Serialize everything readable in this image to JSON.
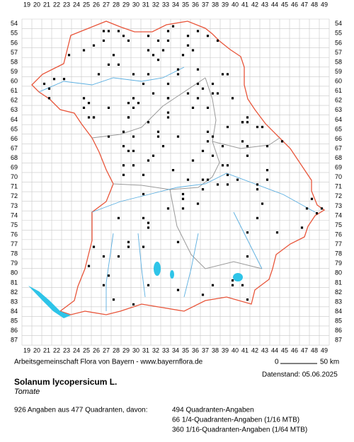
{
  "map": {
    "columns": [
      19,
      20,
      21,
      22,
      23,
      24,
      25,
      26,
      27,
      28,
      29,
      30,
      31,
      32,
      33,
      34,
      35,
      36,
      37,
      38,
      39,
      40,
      41,
      42,
      43,
      44,
      45,
      46,
      47,
      48,
      49
    ],
    "rows": [
      54,
      55,
      56,
      57,
      58,
      59,
      60,
      61,
      62,
      63,
      64,
      65,
      66,
      67,
      68,
      69,
      70,
      71,
      72,
      73,
      74,
      75,
      76,
      77,
      78,
      79,
      80,
      81,
      82,
      83,
      84,
      85,
      86,
      87
    ]
  },
  "footer": {
    "credit": "Arbeitsgemeinschaft Flora von Bayern - www.bayernflora.de",
    "scale_start": "0",
    "scale_end": "50 km",
    "date": "Datenstand: 05.06.2025",
    "species": "Solanum lycopersicum L.",
    "common_name": "Tomate",
    "summary": "926 Angaben aus 477 Quadranten, davon:",
    "stats": [
      "494 Quadranten-Angaben",
      "66 1/4-Quadranten-Angaben (1/16 MTB)",
      "360 1/16-Quadranten-Angaben (1/64 MTB)"
    ]
  }
}
